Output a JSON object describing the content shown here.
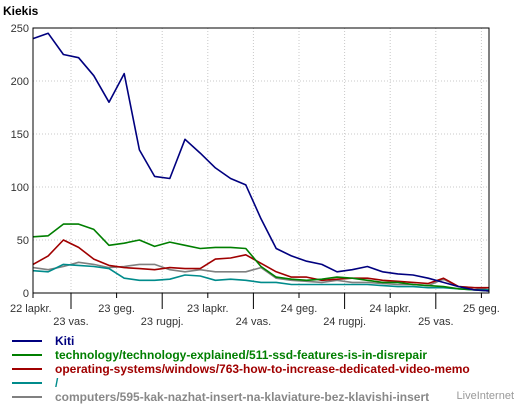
{
  "chart_data": {
    "type": "line",
    "ylabel": "Kiekis",
    "ylim": [
      0,
      250
    ],
    "yticks": [
      0,
      50,
      100,
      150,
      200,
      250
    ],
    "grid": true,
    "xlim": [
      0,
      30
    ],
    "x": [
      0,
      1,
      2,
      3,
      4,
      5,
      6,
      7,
      8,
      9,
      10,
      11,
      12,
      13,
      14,
      15,
      16,
      17,
      18,
      19,
      20,
      21,
      22,
      23,
      24,
      25,
      26,
      27,
      28,
      29,
      30
    ],
    "xtick_labels": [
      {
        "x": 0,
        "label": "22 lapkr.",
        "row": 0
      },
      {
        "x": 2.5,
        "label": "23 vas.",
        "row": 1
      },
      {
        "x": 5.5,
        "label": "23 geg.",
        "row": 0
      },
      {
        "x": 8.5,
        "label": "23 rugpj.",
        "row": 1
      },
      {
        "x": 11.5,
        "label": "23 lapkr.",
        "row": 0
      },
      {
        "x": 14.5,
        "label": "24 vas.",
        "row": 1
      },
      {
        "x": 17.5,
        "label": "24 geg.",
        "row": 0
      },
      {
        "x": 20.5,
        "label": "24 rugpj.",
        "row": 1
      },
      {
        "x": 23.5,
        "label": "24 lapkr.",
        "row": 0
      },
      {
        "x": 26.5,
        "label": "25 vas.",
        "row": 1
      },
      {
        "x": 29.5,
        "label": "25 geg.",
        "row": 0
      }
    ],
    "series": [
      {
        "name": "Kiti",
        "color": "#00007f",
        "values": [
          240,
          245,
          225,
          222,
          205,
          180,
          207,
          135,
          110,
          108,
          145,
          132,
          118,
          108,
          102,
          70,
          42,
          35,
          30,
          27,
          20,
          22,
          25,
          20,
          18,
          17,
          14,
          10,
          6,
          3,
          2
        ]
      },
      {
        "name": "technology/technology-explained/511-ssd-features-is-in-disrepair",
        "color": "#007f00",
        "values": [
          53,
          54,
          65,
          65,
          60,
          45,
          47,
          50,
          44,
          48,
          45,
          42,
          43,
          43,
          42,
          25,
          15,
          13,
          12,
          13,
          15,
          14,
          12,
          10,
          10,
          8,
          7,
          6,
          4,
          3,
          2
        ]
      },
      {
        "name": "operating-systems/windows/763-how-to-increase-dedicated-video-memo",
        "color": "#a00000",
        "values": [
          27,
          35,
          50,
          43,
          32,
          26,
          24,
          23,
          22,
          24,
          23,
          23,
          32,
          33,
          36,
          28,
          20,
          15,
          15,
          12,
          13,
          14,
          14,
          12,
          11,
          10,
          9,
          14,
          6,
          5,
          5
        ]
      },
      {
        "name": "/",
        "color": "#008b8b",
        "values": [
          21,
          20,
          27,
          26,
          25,
          23,
          14,
          12,
          12,
          13,
          17,
          16,
          12,
          13,
          12,
          10,
          10,
          8,
          8,
          8,
          8,
          8,
          8,
          7,
          6,
          6,
          5,
          5,
          4,
          3,
          3
        ]
      },
      {
        "name": "computers/595-kak-nazhat-insert-na-klaviature-bez-klavishi-insert",
        "color": "#808080",
        "values": [
          24,
          22,
          25,
          29,
          27,
          24,
          25,
          27,
          27,
          22,
          20,
          22,
          20,
          20,
          20,
          24,
          14,
          12,
          11,
          10,
          12,
          10,
          10,
          9,
          8,
          8,
          7,
          13,
          6,
          5,
          3
        ]
      }
    ]
  },
  "watermark": "LiveInternet"
}
